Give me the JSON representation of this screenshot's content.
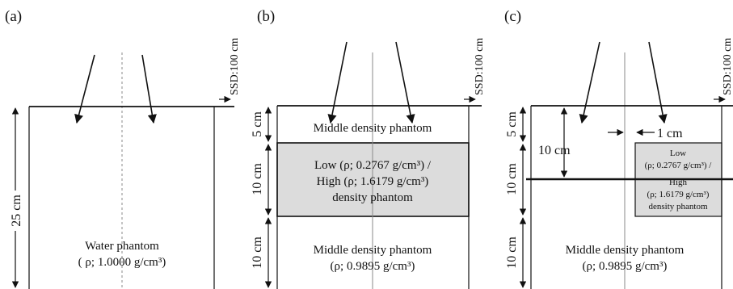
{
  "panels": {
    "a": {
      "label": "(a)",
      "ssd": "SSD:100 cm",
      "depth": "25 cm",
      "phantom_line1": "Water phantom",
      "phantom_line2": "( ρ; 1.0000 g/cm³)"
    },
    "b": {
      "label": "(b)",
      "ssd": "SSD:100 cm",
      "top_layer": "Middle density phantom",
      "middle_line1": "Low (ρ; 0.2767 g/cm³) /",
      "middle_line2": "High (ρ; 1.6179 g/cm³)",
      "middle_line3": "density phantom",
      "bottom_line1": "Middle density phantom",
      "bottom_line2": "(ρ; 0.9895 g/cm³)",
      "dim_top": "5 cm",
      "dim_mid": "10 cm",
      "dim_bot": "10 cm"
    },
    "c": {
      "label": "(c)",
      "ssd": "SSD:100 cm",
      "dim_top": "5 cm",
      "dim_mid": "10 cm",
      "dim_bot": "10 cm",
      "depth_10": "10 cm",
      "offset": "1 cm",
      "insert_line1": "Low",
      "insert_line2": "(ρ; 0.2767 g/cm³) /",
      "insert_line3": "High",
      "insert_line4": "(ρ; 1.6179 g/cm³)",
      "insert_line5": "density phantom",
      "bottom_line1": "Middle density phantom",
      "bottom_line2": "(ρ; 0.9895 g/cm³)"
    }
  },
  "colors": {
    "line": "#111111",
    "insert_fill": "#dcdcdc",
    "axis": "#8a8a8a"
  }
}
